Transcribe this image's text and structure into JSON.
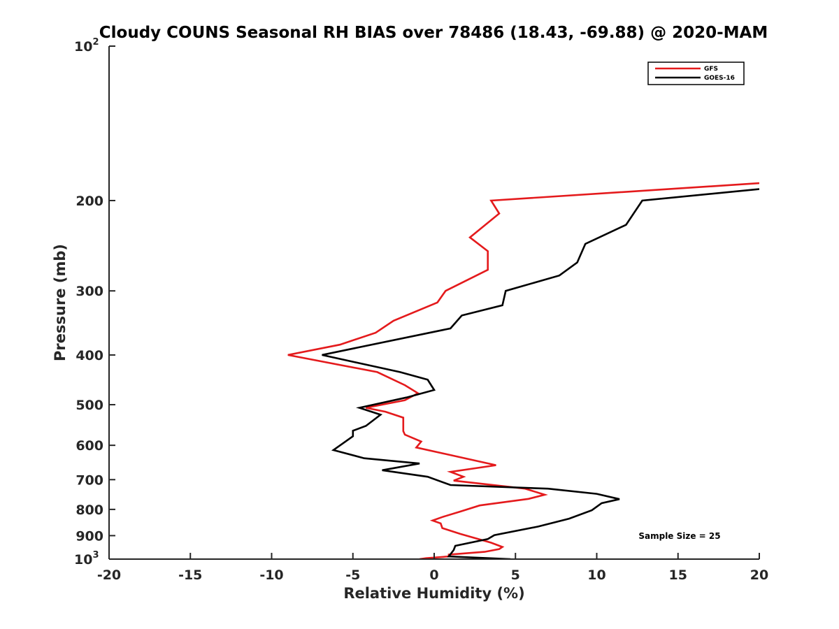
{
  "chart_data": {
    "type": "line",
    "title": "Cloudy COUNS Seasonal RH BIAS over 78486 (18.43, -69.88) @ 2020-MAM",
    "xlabel": "Relative Humidity (%)",
    "ylabel": "Pressure (mb)",
    "xlim": [
      -20,
      20
    ],
    "ylim": [
      100,
      1000
    ],
    "yscale": "log",
    "y_reversed": true,
    "x_ticks": [
      "-20",
      "-15",
      "-10",
      "-5",
      "0",
      "5",
      "10",
      "15",
      "20"
    ],
    "y_ticks": [
      {
        "base": "10",
        "exp": "2",
        "value": 100
      },
      {
        "label": "200",
        "value": 200
      },
      {
        "label": "300",
        "value": 300
      },
      {
        "label": "400",
        "value": 400
      },
      {
        "label": "500",
        "value": 500
      },
      {
        "label": "600",
        "value": 600
      },
      {
        "label": "700",
        "value": 700
      },
      {
        "label": "800",
        "value": 800
      },
      {
        "label": "900",
        "value": 900
      },
      {
        "base": "10",
        "exp": "3",
        "value": 1000
      }
    ],
    "legend": {
      "position": "top-right",
      "entries": [
        "GFS",
        "GOES-16"
      ]
    },
    "annotation": "Sample Size = 25",
    "series": [
      {
        "name": "GFS",
        "color": "#e41a1c",
        "points": [
          [
            20,
            185
          ],
          [
            3.5,
            200
          ],
          [
            4.0,
            212
          ],
          [
            2.2,
            236
          ],
          [
            3.3,
            251
          ],
          [
            3.3,
            273
          ],
          [
            0.7,
            300
          ],
          [
            0.2,
            316
          ],
          [
            -2.5,
            343
          ],
          [
            -3.6,
            362
          ],
          [
            -5.8,
            382
          ],
          [
            -9.0,
            400
          ],
          [
            -3.5,
            432
          ],
          [
            -1.8,
            458
          ],
          [
            -1.0,
            475
          ],
          [
            -1.8,
            490
          ],
          [
            -4.2,
            507
          ],
          [
            -3.0,
            516
          ],
          [
            -1.9,
            530
          ],
          [
            -1.9,
            563
          ],
          [
            -1.8,
            572
          ],
          [
            -0.8,
            590
          ],
          [
            -1.1,
            606
          ],
          [
            3.8,
            656
          ],
          [
            1.0,
            676
          ],
          [
            1.8,
            691
          ],
          [
            1.2,
            703
          ],
          [
            5.6,
            729
          ],
          [
            6.8,
            749
          ],
          [
            5.8,
            763
          ],
          [
            2.8,
            786
          ],
          [
            1.6,
            808
          ],
          [
            0.5,
            828
          ],
          [
            -0.1,
            841
          ],
          [
            0.4,
            852
          ],
          [
            0.5,
            870
          ],
          [
            1.6,
            893
          ],
          [
            3.5,
            929
          ],
          [
            4.2,
            947
          ],
          [
            4.0,
            956
          ],
          [
            3.1,
            968
          ],
          [
            0.9,
            980
          ],
          [
            0.9,
            988
          ],
          [
            -0.5,
            996
          ],
          [
            -0.9,
            1000
          ]
        ]
      },
      {
        "name": "GOES-16",
        "color": "#000000",
        "points": [
          [
            20,
            190
          ],
          [
            12.8,
            200
          ],
          [
            11.8,
            223
          ],
          [
            9.3,
            243
          ],
          [
            8.8,
            264
          ],
          [
            7.7,
            280
          ],
          [
            4.4,
            300
          ],
          [
            4.2,
            320
          ],
          [
            1.7,
            335
          ],
          [
            1.0,
            355
          ],
          [
            -6.9,
            400
          ],
          [
            -2.1,
            432
          ],
          [
            -0.4,
            447
          ],
          [
            0.0,
            468
          ],
          [
            -1.7,
            484
          ],
          [
            -4.6,
            507
          ],
          [
            -3.3,
            523
          ],
          [
            -4.2,
            550
          ],
          [
            -5.0,
            562
          ],
          [
            -5.0,
            576
          ],
          [
            -6.2,
            613
          ],
          [
            -4.3,
            636
          ],
          [
            -0.9,
            651
          ],
          [
            -3.2,
            671
          ],
          [
            -0.4,
            691
          ],
          [
            1.0,
            717
          ],
          [
            7.0,
            729
          ],
          [
            10.0,
            746
          ],
          [
            11.4,
            764
          ],
          [
            10.3,
            778
          ],
          [
            9.7,
            803
          ],
          [
            8.3,
            834
          ],
          [
            6.4,
            864
          ],
          [
            3.7,
            898
          ],
          [
            3.3,
            914
          ],
          [
            1.3,
            942
          ],
          [
            1.2,
            960
          ],
          [
            0.9,
            988
          ],
          [
            4.7,
            1000
          ]
        ]
      }
    ]
  }
}
